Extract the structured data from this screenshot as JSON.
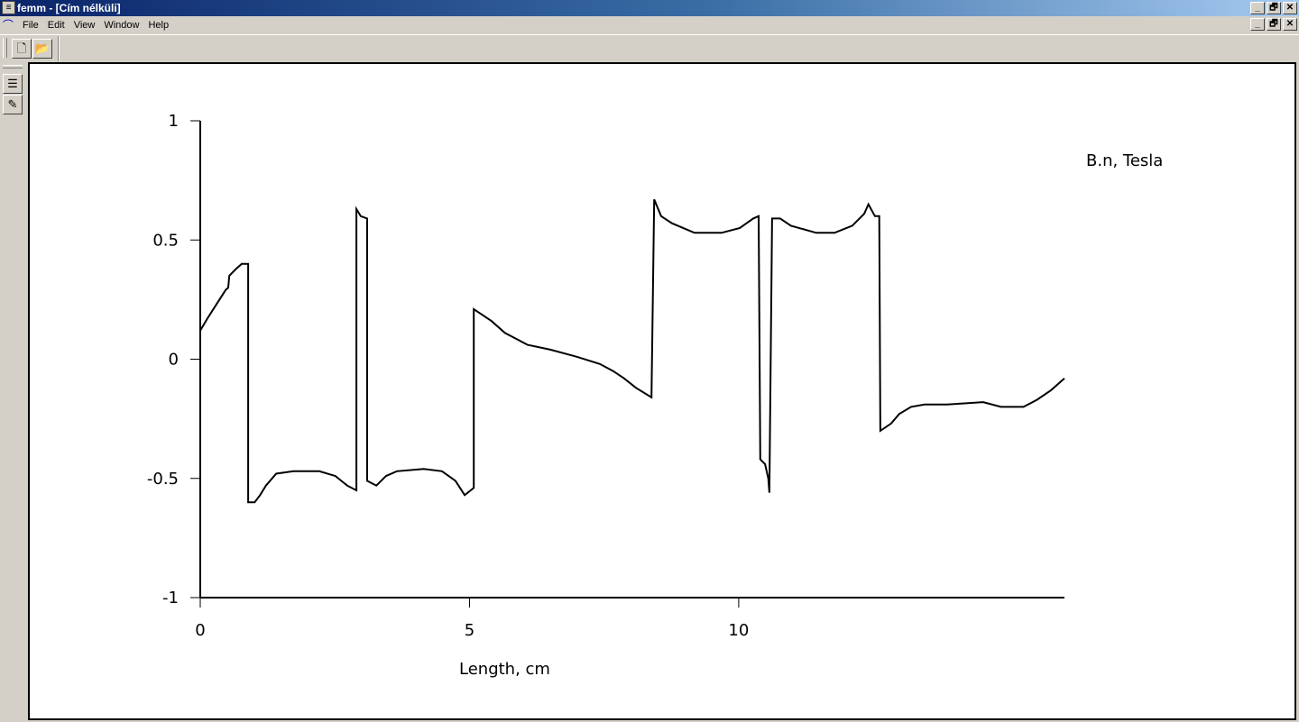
{
  "window": {
    "title": "femm - [Cím nélküli]",
    "controls": {
      "minimize": "_",
      "restore": "🗗",
      "close": "✕"
    }
  },
  "menu": {
    "items": [
      "File",
      "Edit",
      "View",
      "Window",
      "Help"
    ]
  },
  "toolbar": {
    "icons": [
      "new-document-icon",
      "open-folder-icon"
    ]
  },
  "side_toolbar": {
    "icons": [
      "list-sort-icon",
      "edit-notes-icon"
    ]
  },
  "chart_data": {
    "type": "line",
    "title": "B.n, Tesla",
    "xlabel": "Length, cm",
    "ylabel": "",
    "xlim": [
      0,
      16.05
    ],
    "ylim": [
      -1,
      1
    ],
    "xticks": [
      "0",
      "5",
      "10"
    ],
    "yticks": [
      "1",
      "0.5",
      "0",
      "-0.5",
      "-1"
    ],
    "grid": false,
    "line_color": "#000000",
    "x": [
      0,
      0.13,
      0.3,
      0.47,
      0.52,
      0.54,
      0.67,
      0.77,
      0.89,
      0.89,
      1.01,
      1.11,
      1.22,
      1.41,
      1.73,
      2.21,
      2.51,
      2.73,
      2.9,
      2.9,
      2.98,
      3.1,
      3.1,
      3.27,
      3.45,
      3.65,
      4.15,
      4.49,
      4.74,
      4.91,
      5.08,
      5.08,
      5.21,
      5.41,
      5.66,
      5.91,
      6.08,
      6.5,
      7.0,
      7.42,
      7.67,
      7.87,
      8.09,
      8.38,
      8.43,
      8.56,
      8.76,
      9.18,
      9.68,
      10.02,
      10.27,
      10.37,
      10.4,
      10.49,
      10.55,
      10.57,
      10.62,
      10.77,
      10.97,
      11.44,
      11.78,
      12.11,
      12.33,
      12.41,
      12.53,
      12.61,
      12.63,
      12.83,
      12.98,
      13.2,
      13.45,
      13.87,
      14.54,
      14.87,
      15.29,
      15.54,
      15.8,
      16.05
    ],
    "y": [
      0.12,
      0.17,
      0.23,
      0.29,
      0.3,
      0.35,
      0.38,
      0.4,
      0.4,
      -0.6,
      -0.6,
      -0.57,
      -0.53,
      -0.48,
      -0.47,
      -0.47,
      -0.49,
      -0.53,
      -0.55,
      0.63,
      0.6,
      0.59,
      -0.51,
      -0.53,
      -0.49,
      -0.47,
      -0.46,
      -0.47,
      -0.51,
      -0.57,
      -0.54,
      0.21,
      0.19,
      0.16,
      0.11,
      0.08,
      0.06,
      0.04,
      0.01,
      -0.02,
      -0.05,
      -0.08,
      -0.12,
      -0.16,
      0.67,
      0.6,
      0.57,
      0.53,
      0.53,
      0.55,
      0.59,
      0.6,
      -0.42,
      -0.44,
      -0.5,
      -0.56,
      0.59,
      0.59,
      0.56,
      0.53,
      0.53,
      0.56,
      0.61,
      0.65,
      0.6,
      0.6,
      -0.3,
      -0.27,
      -0.23,
      -0.2,
      -0.19,
      -0.19,
      -0.18,
      -0.2,
      -0.2,
      -0.17,
      -0.13,
      -0.08
    ]
  }
}
